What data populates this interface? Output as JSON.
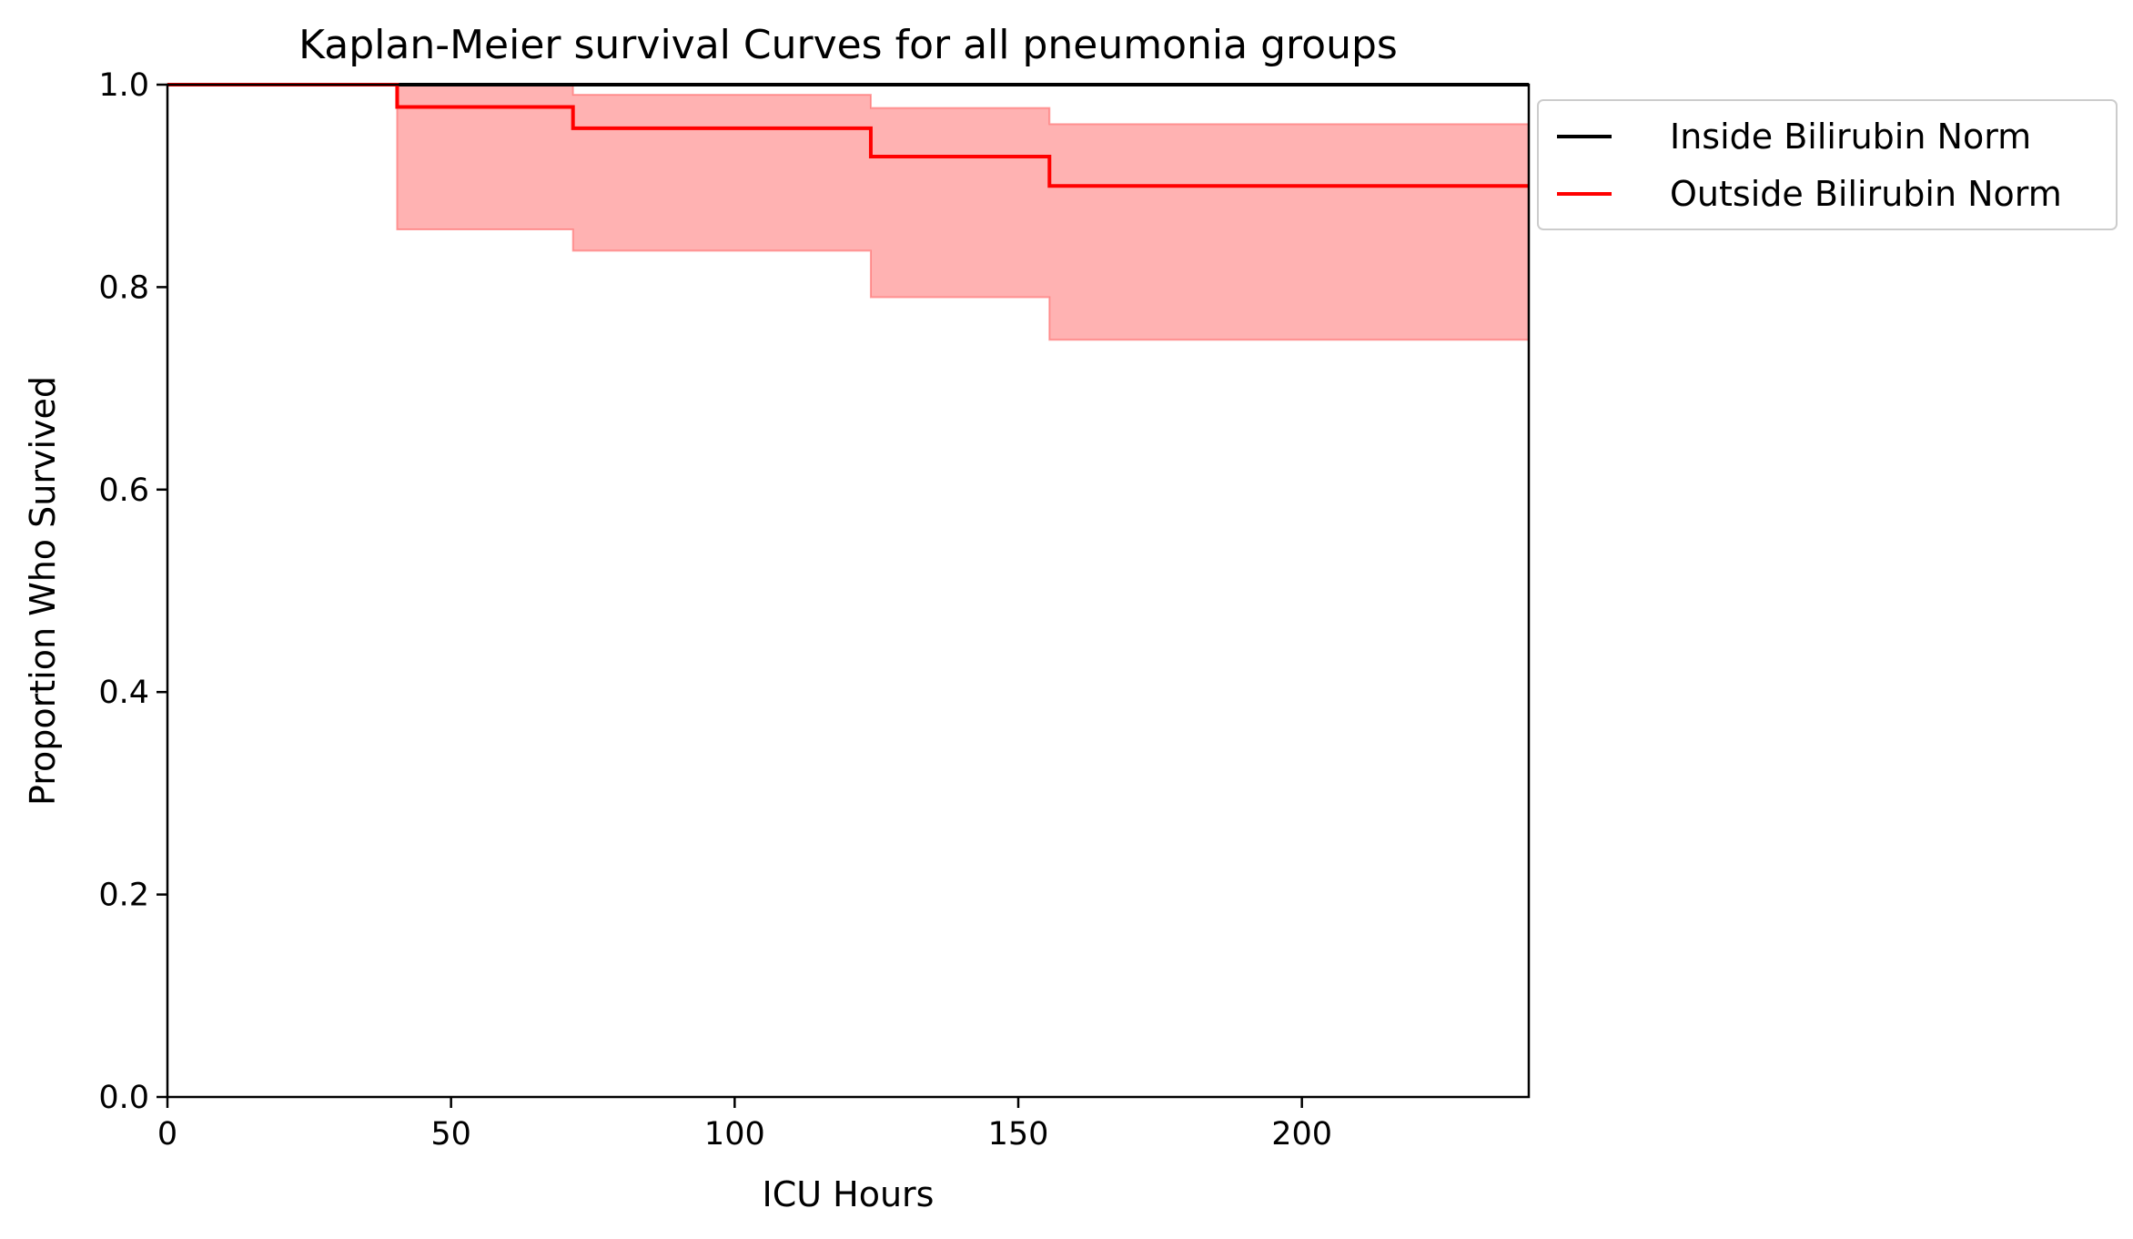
{
  "chart_data": {
    "type": "line",
    "title": "Kaplan-Meier survival Curves for all pneumonia groups",
    "xlabel": "ICU Hours",
    "ylabel": "Proportion Who Survived",
    "xlim": [
      0,
      240
    ],
    "ylim": [
      0.0,
      1.0
    ],
    "x_ticks": [
      0,
      50,
      100,
      150,
      200
    ],
    "x_tick_labels": [
      "0",
      "50",
      "100",
      "150",
      "200"
    ],
    "y_ticks": [
      0.0,
      0.2,
      0.4,
      0.6,
      0.8,
      1.0
    ],
    "y_tick_labels": [
      "0.0",
      "0.2",
      "0.4",
      "0.6",
      "0.8",
      "1.0"
    ],
    "grid": false,
    "legend_position": "outside-top-right",
    "series": [
      {
        "name": "Inside Bilirubin Norm",
        "color": "#000000",
        "step": true,
        "x": [
          0,
          240
        ],
        "y": [
          1.0,
          1.0
        ]
      },
      {
        "name": "Outside Bilirubin Norm",
        "color": "#ff0000",
        "step": true,
        "x": [
          0,
          40.5,
          71.5,
          124,
          155.5,
          240
        ],
        "y": [
          1.0,
          0.978,
          0.957,
          0.929,
          0.9,
          0.9
        ],
        "ci_lower": [
          1.0,
          0.857,
          0.836,
          0.79,
          0.748,
          0.748
        ],
        "ci_upper": [
          1.0,
          1.0,
          0.99,
          0.977,
          0.961,
          0.961
        ],
        "ci_color": "#ff6666"
      }
    ]
  }
}
